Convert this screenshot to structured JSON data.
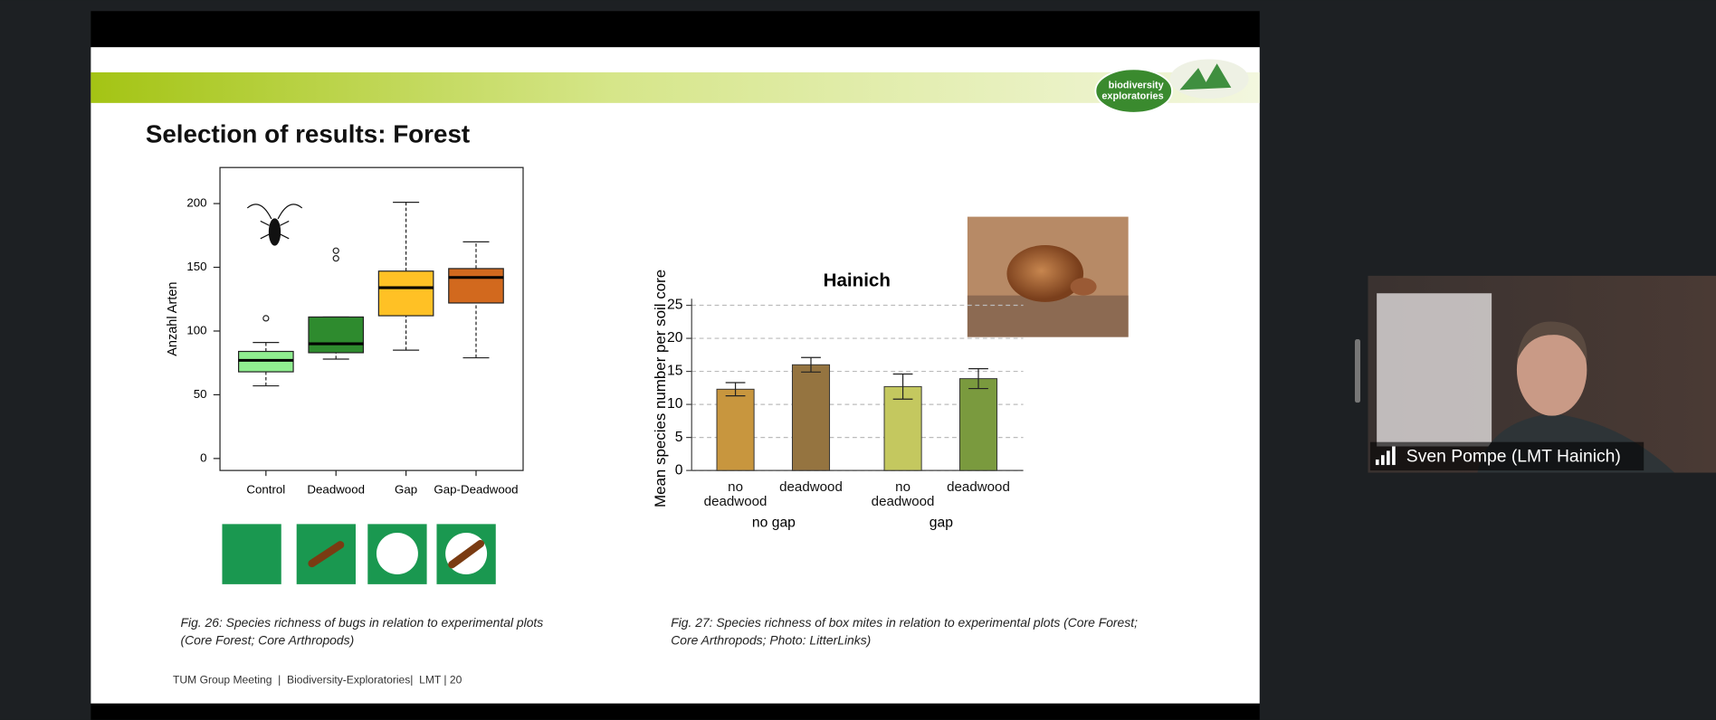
{
  "slide": {
    "title": "Selection of results: Forest",
    "logo": [
      "biodiversity",
      "exploratories"
    ],
    "caption_left": [
      "Fig. 26: Species richness of bugs in relation to experimental plots",
      "(Core Forest; Core Arthropods)"
    ],
    "caption_right": [
      "Fig. 27: Species richness of box mites in relation to experimental plots (Core Forest;",
      "Core Arthropods; Photo: LitterLinks)"
    ],
    "footer": "TUM Group Meeting  |  Biodiversity-Exploratories|  LMT | 20"
  },
  "chart_data": [
    {
      "type": "box",
      "ylabel": "Anzahl Arten",
      "categories": [
        "Control",
        "Deadwood",
        "Gap",
        "Gap-Deadwood"
      ],
      "colors": [
        "#90ee90",
        "#2e8b2e",
        "#ffc125",
        "#d2691e"
      ],
      "boxes": [
        {
          "whisker_low": 57,
          "q1": 68,
          "median": 77,
          "q3": 84,
          "whisker_high": 91,
          "outliers": [
            110
          ]
        },
        {
          "whisker_low": 78,
          "q1": 83,
          "median": 90,
          "q3": 111,
          "whisker_high": 111,
          "outliers": [
            157,
            163
          ]
        },
        {
          "whisker_low": 85,
          "q1": 112,
          "median": 134,
          "q3": 147,
          "whisker_high": 201,
          "outliers": []
        },
        {
          "whisker_low": 79,
          "q1": 122,
          "median": 142,
          "q3": 149,
          "whisker_high": 170,
          "outliers": []
        }
      ],
      "ylim": [
        -9.4,
        228.3
      ],
      "yticks": [
        0,
        50,
        100,
        150,
        200
      ]
    },
    {
      "type": "bar",
      "title": "Hainich",
      "ylabel": "Mean species number per soil core",
      "categories": [
        "no deadwood",
        "deadwood",
        "no deadwood",
        "deadwood"
      ],
      "groups": [
        "no gap",
        "gap"
      ],
      "values": [
        12.3,
        16,
        12.7,
        13.9
      ],
      "errors": [
        1,
        1.1,
        1.9,
        1.5
      ],
      "colors": [
        "#c8963e",
        "#957440",
        "#c4c85f",
        "#7a9a3e"
      ],
      "ylim": [
        0,
        25
      ],
      "yticks": [
        0,
        5,
        10,
        15,
        20,
        25
      ],
      "grid": true
    }
  ],
  "video": {
    "name": "Sven Pompe (LMT Hainich)"
  }
}
